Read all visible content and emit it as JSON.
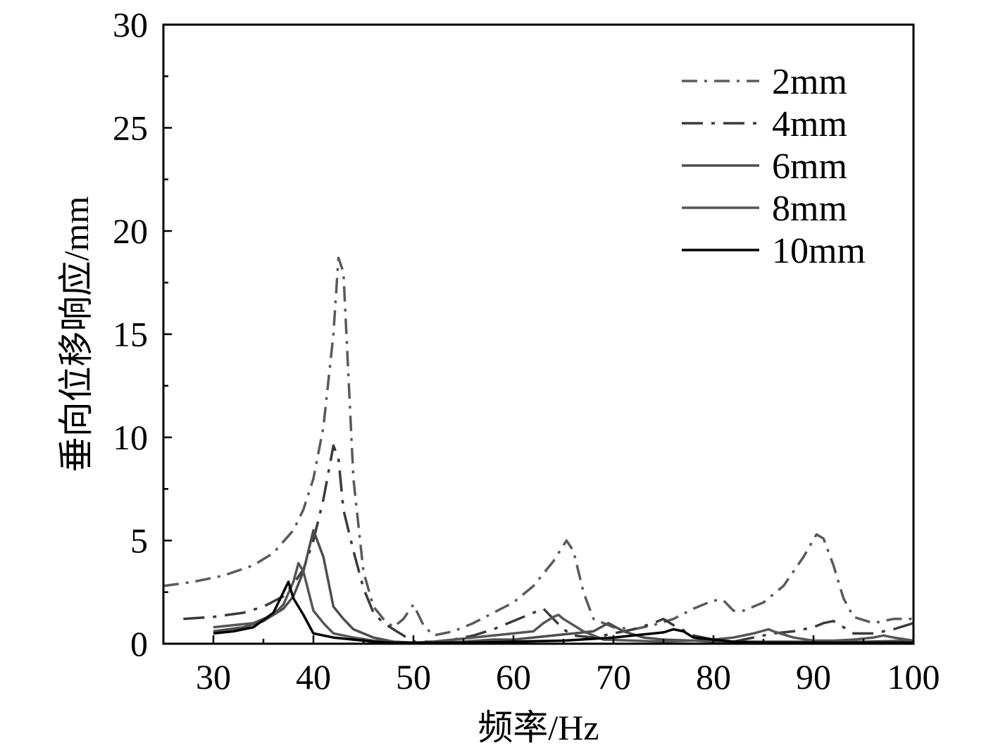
{
  "chart_data": {
    "type": "line",
    "xlabel": "频率/Hz",
    "ylabel": "垂向位移响应/mm",
    "xlim": [
      25,
      100
    ],
    "ylim": [
      0,
      30
    ],
    "xticks": [
      30,
      40,
      50,
      60,
      70,
      80,
      90,
      100
    ],
    "yticks": [
      0,
      5,
      10,
      15,
      20,
      25,
      30
    ],
    "grid": false,
    "legend_position": "top-right",
    "series": [
      {
        "name": "2mm",
        "color": "#5a5a5a",
        "dash": "dash-dot",
        "points": [
          [
            25,
            2.8
          ],
          [
            28,
            3.0
          ],
          [
            31,
            3.3
          ],
          [
            34,
            3.8
          ],
          [
            36,
            4.4
          ],
          [
            38,
            5.5
          ],
          [
            39,
            6.5
          ],
          [
            40,
            8.0
          ],
          [
            41,
            10.5
          ],
          [
            42,
            15.0
          ],
          [
            42.5,
            18.7
          ],
          [
            43,
            18.0
          ],
          [
            43.5,
            13.0
          ],
          [
            44,
            8.0
          ],
          [
            45,
            3.5
          ],
          [
            46,
            1.8
          ],
          [
            47,
            1.2
          ],
          [
            48,
            0.8
          ],
          [
            49,
            1.2
          ],
          [
            50,
            1.9
          ],
          [
            51,
            0.9
          ],
          [
            52,
            0.4
          ],
          [
            54,
            0.6
          ],
          [
            56,
            1.0
          ],
          [
            58,
            1.5
          ],
          [
            60,
            2.0
          ],
          [
            62,
            2.8
          ],
          [
            64,
            4.0
          ],
          [
            65.3,
            5.0
          ],
          [
            66,
            4.5
          ],
          [
            67,
            2.5
          ],
          [
            68,
            1.2
          ],
          [
            70,
            0.8
          ],
          [
            72,
            0.7
          ],
          [
            74,
            0.9
          ],
          [
            76,
            1.2
          ],
          [
            78,
            1.7
          ],
          [
            80,
            2.1
          ],
          [
            81,
            2.1
          ],
          [
            82,
            1.6
          ],
          [
            83,
            1.6
          ],
          [
            85,
            2.0
          ],
          [
            87,
            2.8
          ],
          [
            89,
            4.2
          ],
          [
            90.3,
            5.3
          ],
          [
            91,
            5.1
          ],
          [
            92,
            3.8
          ],
          [
            93,
            2.2
          ],
          [
            94,
            1.3
          ],
          [
            96,
            1.0
          ],
          [
            98,
            1.2
          ],
          [
            100,
            1.2
          ]
        ]
      },
      {
        "name": "4mm",
        "color": "#3a3a3a",
        "dash": "long-dash-dot",
        "points": [
          [
            27,
            1.2
          ],
          [
            30,
            1.3
          ],
          [
            33,
            1.5
          ],
          [
            35,
            1.8
          ],
          [
            37,
            2.3
          ],
          [
            38,
            2.9
          ],
          [
            39,
            3.6
          ],
          [
            40,
            5.0
          ],
          [
            41,
            7.0
          ],
          [
            42,
            9.6
          ],
          [
            42.5,
            9.0
          ],
          [
            43,
            6.5
          ],
          [
            44,
            4.5
          ],
          [
            45,
            2.7
          ],
          [
            46,
            1.5
          ],
          [
            47,
            1.0
          ],
          [
            48,
            0.7
          ],
          [
            49,
            0.4
          ],
          [
            50,
            0.1
          ],
          [
            52,
            0.1
          ],
          [
            54,
            0.2
          ],
          [
            56,
            0.4
          ],
          [
            58,
            0.7
          ],
          [
            60,
            1.1
          ],
          [
            62,
            1.5
          ],
          [
            63,
            1.7
          ],
          [
            64,
            1.2
          ],
          [
            65,
            0.7
          ],
          [
            66,
            0.4
          ],
          [
            68,
            0.3
          ],
          [
            70,
            0.5
          ],
          [
            72,
            0.7
          ],
          [
            74,
            1.0
          ],
          [
            75,
            1.2
          ],
          [
            76,
            0.9
          ],
          [
            78,
            0.4
          ],
          [
            80,
            0.2
          ],
          [
            82,
            0.1
          ],
          [
            84,
            0.3
          ],
          [
            86,
            0.5
          ],
          [
            88,
            0.6
          ],
          [
            90,
            0.8
          ],
          [
            91,
            1.0
          ],
          [
            92,
            1.1
          ],
          [
            93,
            0.8
          ],
          [
            94,
            0.5
          ],
          [
            96,
            0.5
          ],
          [
            98,
            0.7
          ],
          [
            100,
            1.0
          ]
        ]
      },
      {
        "name": "6mm",
        "color": "#4d4d4d",
        "dash": "solid",
        "points": [
          [
            30,
            0.6
          ],
          [
            33,
            0.8
          ],
          [
            35,
            1.1
          ],
          [
            37,
            1.7
          ],
          [
            38,
            2.3
          ],
          [
            39,
            3.5
          ],
          [
            40,
            5.5
          ],
          [
            41,
            4.2
          ],
          [
            42,
            1.8
          ],
          [
            43,
            1.2
          ],
          [
            44,
            0.7
          ],
          [
            46,
            0.3
          ],
          [
            48,
            0.1
          ],
          [
            50,
            0.05
          ],
          [
            52,
            0.05
          ],
          [
            55,
            0.1
          ],
          [
            58,
            0.2
          ],
          [
            60,
            0.2
          ],
          [
            62,
            0.3
          ],
          [
            64,
            0.4
          ],
          [
            66,
            0.5
          ],
          [
            68,
            0.6
          ],
          [
            69.5,
            1.0
          ],
          [
            71,
            0.6
          ],
          [
            73,
            0.3
          ],
          [
            75,
            0.2
          ],
          [
            78,
            0.15
          ],
          [
            80,
            0.1
          ],
          [
            85,
            0.1
          ],
          [
            90,
            0.1
          ],
          [
            95,
            0.1
          ],
          [
            100,
            0.15
          ]
        ]
      },
      {
        "name": "8mm",
        "color": "#555555",
        "dash": "solid",
        "points": [
          [
            30,
            0.8
          ],
          [
            32,
            0.9
          ],
          [
            34,
            1.0
          ],
          [
            36,
            1.4
          ],
          [
            37,
            1.9
          ],
          [
            38,
            3.0
          ],
          [
            38.5,
            3.9
          ],
          [
            39,
            3.5
          ],
          [
            40,
            1.6
          ],
          [
            41,
            1.0
          ],
          [
            42,
            0.5
          ],
          [
            44,
            0.3
          ],
          [
            46,
            0.15
          ],
          [
            48,
            0.1
          ],
          [
            50,
            0.05
          ],
          [
            52,
            0.1
          ],
          [
            54,
            0.2
          ],
          [
            56,
            0.3
          ],
          [
            58,
            0.4
          ],
          [
            60,
            0.5
          ],
          [
            62,
            0.6
          ],
          [
            63,
            1.0
          ],
          [
            64,
            1.3
          ],
          [
            64.5,
            1.4
          ],
          [
            65,
            1.2
          ],
          [
            67,
            0.6
          ],
          [
            69,
            0.2
          ],
          [
            72,
            0.15
          ],
          [
            75,
            0.1
          ],
          [
            78,
            0.15
          ],
          [
            80,
            0.2
          ],
          [
            82,
            0.3
          ],
          [
            84,
            0.5
          ],
          [
            85.5,
            0.7
          ],
          [
            86,
            0.6
          ],
          [
            88,
            0.3
          ],
          [
            90,
            0.15
          ],
          [
            92,
            0.15
          ],
          [
            94,
            0.2
          ],
          [
            96,
            0.3
          ],
          [
            97,
            0.4
          ],
          [
            98,
            0.3
          ],
          [
            100,
            0.15
          ]
        ]
      },
      {
        "name": "10mm",
        "color": "#000000",
        "dash": "solid",
        "points": [
          [
            30,
            0.5
          ],
          [
            32,
            0.6
          ],
          [
            34,
            0.8
          ],
          [
            36,
            1.5
          ],
          [
            37,
            2.5
          ],
          [
            37.5,
            3.0
          ],
          [
            38,
            2.2
          ],
          [
            39,
            1.4
          ],
          [
            40,
            0.5
          ],
          [
            42,
            0.3
          ],
          [
            44,
            0.2
          ],
          [
            46,
            0.1
          ],
          [
            48,
            0.05
          ],
          [
            50,
            0.05
          ],
          [
            55,
            0.05
          ],
          [
            60,
            0.1
          ],
          [
            65,
            0.15
          ],
          [
            70,
            0.3
          ],
          [
            72,
            0.4
          ],
          [
            74,
            0.5
          ],
          [
            75,
            0.55
          ],
          [
            76,
            0.7
          ],
          [
            77,
            0.6
          ],
          [
            78,
            0.3
          ],
          [
            80,
            0.2
          ],
          [
            82,
            0.1
          ],
          [
            85,
            0.05
          ],
          [
            90,
            0.05
          ],
          [
            95,
            0.05
          ],
          [
            100,
            0.05
          ]
        ]
      }
    ]
  }
}
